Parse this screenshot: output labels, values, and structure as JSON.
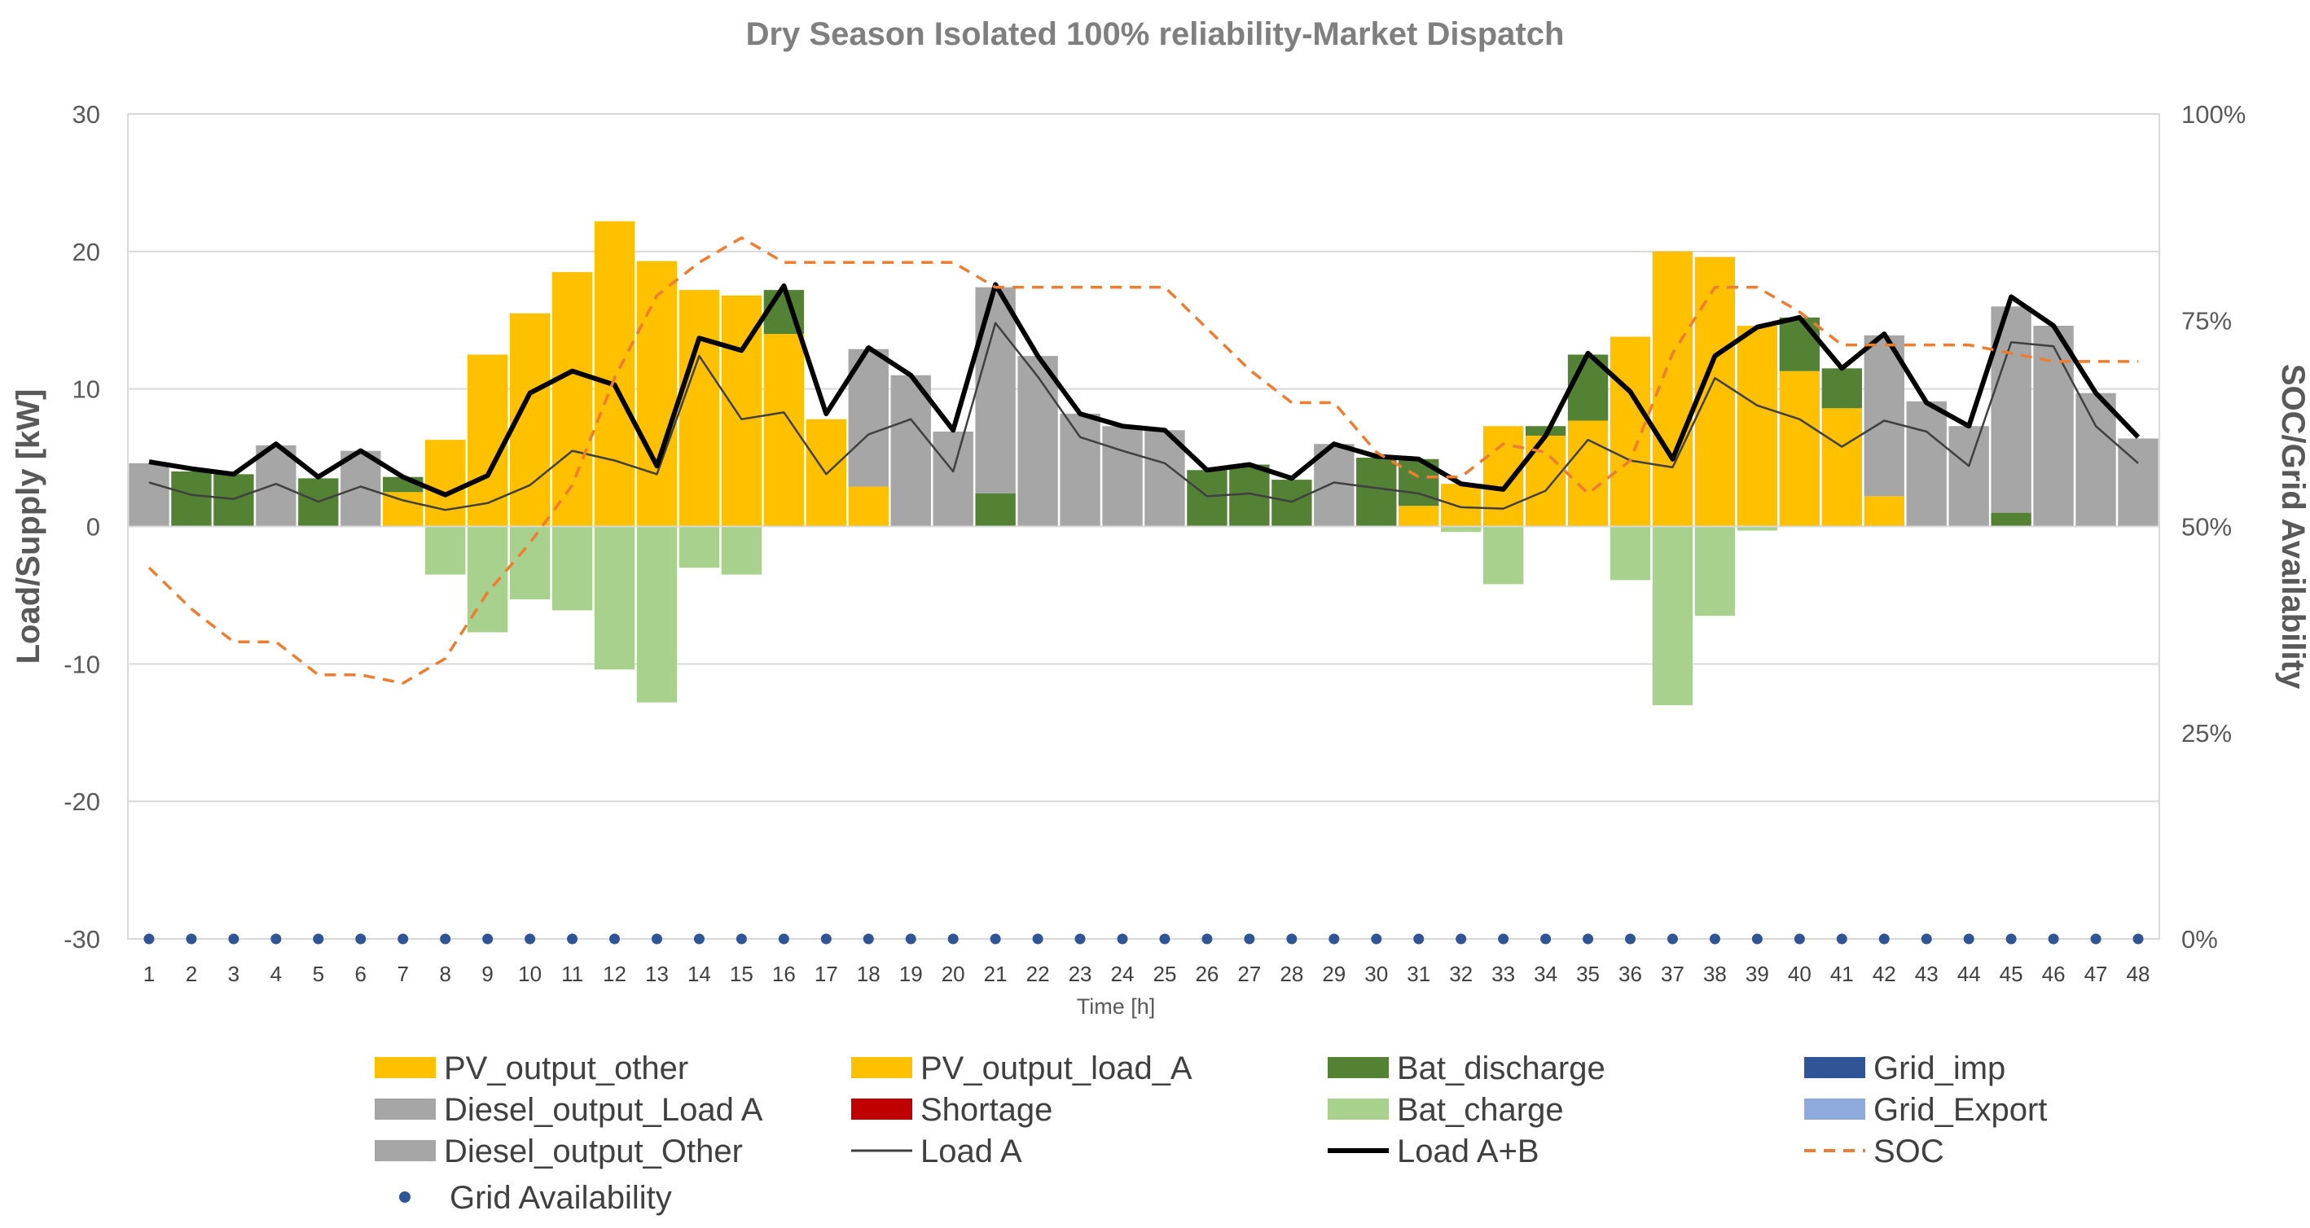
{
  "chart_data": {
    "type": "bar",
    "title": "Dry Season Isolated 100% reliability-Market Dispatch",
    "xlabel": "Time [h]",
    "ylabel": "Load/Supply [kW]",
    "y2label": "SOC/Grid Availability",
    "ylim": [
      -30,
      30
    ],
    "yticks": [
      "30",
      "20",
      "10",
      "0",
      "-10",
      "-20",
      "-30"
    ],
    "y2lim": [
      0,
      100
    ],
    "y2ticks": [
      "100%",
      "75%",
      "50%",
      "25%",
      "0%"
    ],
    "x": [
      "1",
      "2",
      "3",
      "4",
      "5",
      "6",
      "7",
      "8",
      "9",
      "10",
      "11",
      "12",
      "13",
      "14",
      "15",
      "16",
      "17",
      "18",
      "19",
      "20",
      "21",
      "22",
      "23",
      "24",
      "25",
      "26",
      "27",
      "28",
      "29",
      "30",
      "31",
      "32",
      "33",
      "34",
      "35",
      "36",
      "37",
      "38",
      "39",
      "40",
      "41",
      "42",
      "43",
      "44",
      "45",
      "46",
      "47",
      "48"
    ],
    "series": [
      {
        "name": "PV_output_other",
        "kind": "bar",
        "color": "#ffc000",
        "values": [
          0,
          0,
          0,
          0,
          0,
          0,
          0,
          0,
          0,
          0,
          0,
          0,
          0,
          0,
          0,
          0,
          0,
          0,
          0,
          0,
          0,
          0,
          0,
          0,
          0,
          0,
          0,
          0,
          0,
          0,
          0,
          0,
          0,
          0,
          0,
          0,
          0,
          0,
          0,
          0,
          0,
          0,
          0,
          0,
          0,
          0,
          0,
          0
        ]
      },
      {
        "name": "PV_output_load_A",
        "kind": "bar",
        "color": "#ffc000",
        "values": [
          0,
          0,
          0,
          0,
          0,
          0,
          2.5,
          6.3,
          12.5,
          15.5,
          18.5,
          22.2,
          19.3,
          17.2,
          16.8,
          14,
          7.8,
          2.9,
          0,
          0,
          0,
          0,
          0,
          0,
          0,
          0,
          0,
          0,
          0,
          0,
          1.5,
          3.1,
          7.3,
          6.6,
          7.7,
          13.8,
          20,
          19.6,
          14.6,
          11.3,
          8.6,
          2.2,
          0,
          0,
          0,
          0,
          0,
          0
        ]
      },
      {
        "name": "Bat_discharge",
        "kind": "bar",
        "color": "#548235",
        "values": [
          0,
          4.0,
          3.8,
          0,
          3.5,
          0,
          1.1,
          0,
          0,
          0,
          0,
          0,
          0,
          0,
          0,
          3.2,
          0,
          0,
          0,
          0,
          2.4,
          0,
          0,
          0,
          0,
          4.1,
          4.5,
          3.4,
          0,
          5.0,
          3.4,
          0,
          0,
          0.7,
          4.8,
          0,
          0,
          0,
          0,
          3.9,
          2.9,
          0,
          0,
          0,
          1.0,
          0,
          0,
          0
        ]
      },
      {
        "name": "Grid_imp",
        "kind": "bar",
        "color": "#2f5597",
        "values": [
          0,
          0,
          0,
          0,
          0,
          0,
          0,
          0,
          0,
          0,
          0,
          0,
          0,
          0,
          0,
          0,
          0,
          0,
          0,
          0,
          0,
          0,
          0,
          0,
          0,
          0,
          0,
          0,
          0,
          0,
          0,
          0,
          0,
          0,
          0,
          0,
          0,
          0,
          0,
          0,
          0,
          0,
          0,
          0,
          0,
          0,
          0,
          0
        ]
      },
      {
        "name": "Diesel_output_Load A",
        "kind": "bar",
        "color": "#a6a6a6",
        "values": [
          4.6,
          0,
          0,
          5.9,
          0,
          5.5,
          0,
          0,
          0,
          0,
          0,
          0,
          0,
          0,
          0,
          0,
          0,
          10,
          11,
          6.9,
          15,
          12.4,
          8.2,
          7.3,
          7,
          0,
          0,
          0,
          6,
          0,
          0,
          0,
          0,
          0,
          0,
          0,
          0,
          0,
          0,
          0,
          0,
          11.7,
          9.1,
          7.3,
          15,
          14.6,
          9.7,
          6.4
        ]
      },
      {
        "name": "Shortage",
        "kind": "bar",
        "color": "#c00000",
        "values": [
          0,
          0,
          0,
          0,
          0,
          0,
          0,
          0,
          0,
          0,
          0,
          0,
          0,
          0,
          0,
          0,
          0,
          0,
          0,
          0,
          0,
          0,
          0,
          0,
          0,
          0,
          0,
          0,
          0,
          0,
          0,
          0,
          0,
          0,
          0,
          0,
          0,
          0,
          0,
          0,
          0,
          0,
          0,
          0,
          0,
          0,
          0,
          0
        ]
      },
      {
        "name": "Bat_charge",
        "kind": "bar",
        "color": "#a9d18e",
        "values": [
          0,
          0,
          0,
          0,
          0,
          0,
          0,
          -3.5,
          -7.7,
          -5.3,
          -6.1,
          -10.4,
          -12.8,
          -3,
          -3.5,
          0,
          0,
          0,
          0,
          0,
          0,
          0,
          0,
          0,
          0,
          0,
          0,
          0,
          0,
          0,
          0,
          -0.4,
          -4.2,
          0,
          0,
          -3.9,
          -13,
          -6.5,
          -0.3,
          0,
          0,
          0,
          0,
          0,
          0,
          0,
          0,
          0
        ]
      },
      {
        "name": "Grid_Export",
        "kind": "bar",
        "color": "#8faadc",
        "values": [
          0,
          0,
          0,
          0,
          0,
          0,
          0,
          0,
          0,
          0,
          0,
          0,
          0,
          0,
          0,
          0,
          0,
          0,
          0,
          0,
          0,
          0,
          0,
          0,
          0,
          0,
          0,
          0,
          0,
          0,
          0,
          0,
          0,
          0,
          0,
          0,
          0,
          0,
          0,
          0,
          0,
          0,
          0,
          0,
          0,
          0,
          0,
          0
        ]
      },
      {
        "name": "Diesel_output_Other",
        "kind": "bar",
        "color": "#a6a6a6",
        "values": [
          0,
          0,
          0,
          0,
          0,
          0,
          0,
          0,
          0,
          0,
          0,
          0,
          0,
          0,
          0,
          0,
          0,
          0,
          0,
          0,
          0,
          0,
          0,
          0,
          0,
          0,
          0,
          0,
          0,
          0,
          0,
          0,
          0,
          0,
          0,
          0,
          0,
          0,
          0,
          0,
          0,
          0,
          0,
          0,
          0,
          0,
          0,
          0
        ]
      },
      {
        "name": "Load A",
        "kind": "line",
        "color": "#404040",
        "values": [
          3.2,
          2.3,
          2.0,
          3.1,
          1.8,
          2.9,
          1.9,
          1.2,
          1.7,
          3.0,
          5.5,
          4.8,
          3.8,
          12.4,
          7.8,
          8.3,
          3.8,
          6.7,
          7.8,
          4.0,
          14.8,
          10.9,
          6.5,
          5.5,
          4.6,
          2.2,
          2.4,
          1.8,
          3.2,
          2.8,
          2.4,
          1.4,
          1.3,
          2.6,
          6.3,
          4.8,
          4.3,
          10.8,
          8.8,
          7.8,
          5.8,
          7.7,
          6.9,
          4.4,
          13.4,
          13.1,
          7.3,
          4.6
        ]
      },
      {
        "name": "Load A+B",
        "kind": "line",
        "color": "#000000",
        "values": [
          4.7,
          4.2,
          3.8,
          6.0,
          3.6,
          5.5,
          3.6,
          2.3,
          3.7,
          9.7,
          11.3,
          10.3,
          4.4,
          13.7,
          12.8,
          17.5,
          8.2,
          13.0,
          11.0,
          7.0,
          17.6,
          12.4,
          8.2,
          7.3,
          7.0,
          4.1,
          4.5,
          3.5,
          6.0,
          5.1,
          4.9,
          3.1,
          2.7,
          6.6,
          12.6,
          9.8,
          4.9,
          12.4,
          14.5,
          15.2,
          11.5,
          14.0,
          9.0,
          7.3,
          16.7,
          14.6,
          9.7,
          6.5
        ]
      },
      {
        "name": "SOC",
        "kind": "line",
        "y2": true,
        "color": "#ed7d31",
        "dash": true,
        "values": [
          45,
          40,
          36,
          36,
          32,
          32,
          31,
          34,
          42,
          48,
          55,
          68,
          78,
          82,
          85,
          82,
          82,
          82,
          82,
          82,
          79,
          79,
          79,
          79,
          79,
          74,
          69,
          65,
          65,
          59,
          56,
          56,
          60,
          59,
          54,
          58,
          71,
          79,
          79,
          76,
          72,
          72,
          72,
          72,
          71,
          70,
          70,
          70
        ]
      },
      {
        "name": "Grid Availability",
        "kind": "scatter",
        "y2": true,
        "color": "#2f5597",
        "values": [
          0,
          0,
          0,
          0,
          0,
          0,
          0,
          0,
          0,
          0,
          0,
          0,
          0,
          0,
          0,
          0,
          0,
          0,
          0,
          0,
          0,
          0,
          0,
          0,
          0,
          0,
          0,
          0,
          0,
          0,
          0,
          0,
          0,
          0,
          0,
          0,
          0,
          0,
          0,
          0,
          0,
          0,
          0,
          0,
          0,
          0,
          0,
          0
        ]
      }
    ],
    "legend_position": "bottom",
    "legend": [
      {
        "label": "PV_output_other",
        "kind": "box",
        "color": "#ffc000"
      },
      {
        "label": "PV_output_load_A",
        "kind": "box",
        "color": "#ffc000"
      },
      {
        "label": "Bat_discharge",
        "kind": "box",
        "color": "#548235"
      },
      {
        "label": "Grid_imp",
        "kind": "box",
        "color": "#2f5597"
      },
      {
        "label": "Diesel_output_Load A",
        "kind": "box",
        "color": "#a6a6a6"
      },
      {
        "label": "Shortage",
        "kind": "box",
        "color": "#c00000"
      },
      {
        "label": "Bat_charge",
        "kind": "box",
        "color": "#a9d18e"
      },
      {
        "label": "Grid_Export",
        "kind": "box",
        "color": "#8faadc"
      },
      {
        "label": "Diesel_output_Other",
        "kind": "box",
        "color": "#a6a6a6"
      },
      {
        "label": "Load A",
        "kind": "thinline",
        "color": "#404040"
      },
      {
        "label": "Load A+B",
        "kind": "thickline",
        "color": "#000000"
      },
      {
        "label": "SOC",
        "kind": "dash",
        "color": "#ed7d31"
      },
      {
        "label": "Grid Availability",
        "kind": "dot",
        "color": "#2f5597"
      }
    ]
  }
}
